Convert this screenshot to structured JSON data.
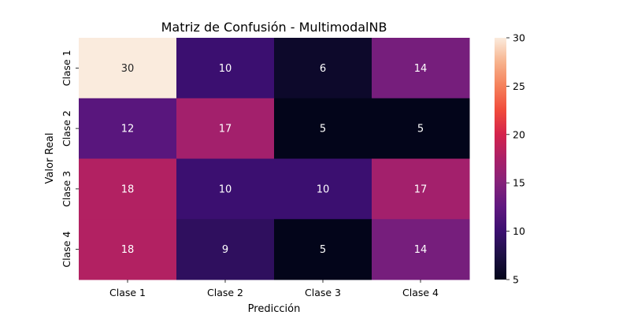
{
  "chart_data": {
    "type": "heatmap",
    "title": "Matriz de Confusión - MultimodalNB",
    "xlabel": "Predicción",
    "ylabel": "Valor Real",
    "x_categories": [
      "Clase 1",
      "Clase 2",
      "Clase 3",
      "Clase 4"
    ],
    "y_categories": [
      "Clase 1",
      "Clase 2",
      "Clase 3",
      "Clase 4"
    ],
    "values": [
      [
        30,
        10,
        6,
        14
      ],
      [
        12,
        17,
        5,
        5
      ],
      [
        18,
        10,
        10,
        17
      ],
      [
        18,
        9,
        5,
        14
      ]
    ],
    "colorbar": {
      "range": [
        5,
        30
      ],
      "ticks": [
        5,
        10,
        15,
        20,
        25,
        30
      ],
      "colormap": "rocket"
    }
  }
}
